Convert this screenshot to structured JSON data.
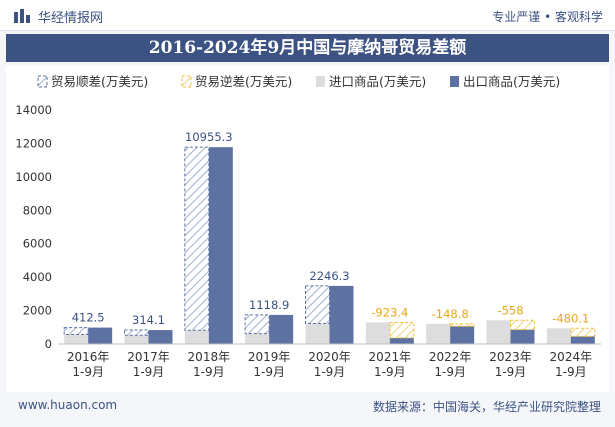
{
  "header": {
    "brand": "华经情报网",
    "tagline": "专业严谨 • 客观科学",
    "icon": "bar-logo-icon"
  },
  "title": "2016-2024年9月中国与摩纳哥贸易差额",
  "footer": {
    "website": "www.huaon.com",
    "source": "数据来源：中国海关，华经产业研究院整理"
  },
  "colors": {
    "accent": "#3b5283",
    "export": "#5d72a3",
    "import": "#dddddd",
    "surplus": "#5d72a3",
    "deficit": "#f3c03a",
    "surplus_label": "#3b5283",
    "deficit_label": "#e6a817"
  },
  "chart_data": {
    "type": "bar",
    "categories": [
      "2016年\n1-9月",
      "2017年\n1-9月",
      "2018年\n1-9月",
      "2019年\n1-9月",
      "2020年\n1-9月",
      "2021年\n1-9月",
      "2022年\n1-9月",
      "2023年\n1-9月",
      "2024年\n1-9月"
    ],
    "legend": [
      "贸易顺差(万美元)",
      "贸易逆差(万美元)",
      "进口商品(万美元)",
      "出口商品(万美元)"
    ],
    "series": [
      {
        "name": "贸易顺差(万美元)",
        "values": [
          412.5,
          314.1,
          10955.3,
          1118.9,
          2246.3,
          null,
          null,
          null,
          null
        ]
      },
      {
        "name": "贸易逆差(万美元)",
        "values": [
          null,
          null,
          null,
          null,
          null,
          -923.4,
          -148.8,
          -558,
          -480.1
        ]
      },
      {
        "name": "进口商品(万美元)",
        "values": [
          570,
          520,
          820,
          620,
          1230,
          1290,
          1210,
          1420,
          940
        ]
      },
      {
        "name": "出口商品(万美元)",
        "values": [
          982.5,
          834.1,
          11775.3,
          1738.9,
          3476.3,
          366.6,
          1061.2,
          862,
          459.9
        ]
      }
    ],
    "data_labels": [
      "412.5",
      "314.1",
      "10955.3",
      "1118.9",
      "2246.3",
      "-923.4",
      "-148.8",
      "-558",
      "-480.1"
    ],
    "yticks": [
      "0",
      "2000",
      "4000",
      "6000",
      "8000",
      "10000",
      "12000",
      "14000"
    ],
    "ylim": [
      0,
      14000
    ],
    "legend_position": "top",
    "grid": false
  }
}
